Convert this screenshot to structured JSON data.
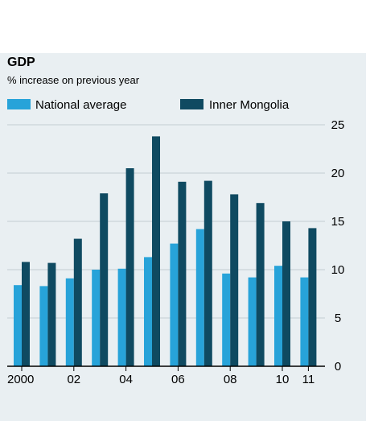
{
  "chart_data": {
    "type": "bar",
    "title": "GDP",
    "subtitle": "% increase on previous year",
    "series": [
      {
        "name": "National average",
        "color": "#27a3d9",
        "values": [
          8.4,
          8.3,
          9.1,
          10.0,
          10.1,
          11.3,
          12.7,
          14.2,
          9.6,
          9.2,
          10.4,
          9.2
        ]
      },
      {
        "name": "Inner Mongolia",
        "color": "#0f4a61",
        "values": [
          10.8,
          10.7,
          13.2,
          17.9,
          20.5,
          23.8,
          19.1,
          19.2,
          17.8,
          16.9,
          15.0,
          14.3
        ]
      }
    ],
    "years": [
      2000,
      2001,
      2002,
      2003,
      2004,
      2005,
      2006,
      2007,
      2008,
      2009,
      2010,
      2011
    ],
    "x_tick_labels": [
      {
        "year": 2000,
        "label": "2000"
      },
      {
        "year": 2002,
        "label": "02"
      },
      {
        "year": 2004,
        "label": "04"
      },
      {
        "year": 2006,
        "label": "06"
      },
      {
        "year": 2008,
        "label": "08"
      },
      {
        "year": 2010,
        "label": "10"
      },
      {
        "year": 2011,
        "label": "11"
      }
    ],
    "y_ticks": [
      0,
      5,
      10,
      15,
      20,
      25
    ],
    "ylim": [
      0,
      25
    ],
    "grid": true,
    "y_axis_side": "right",
    "legend_position": "top"
  }
}
